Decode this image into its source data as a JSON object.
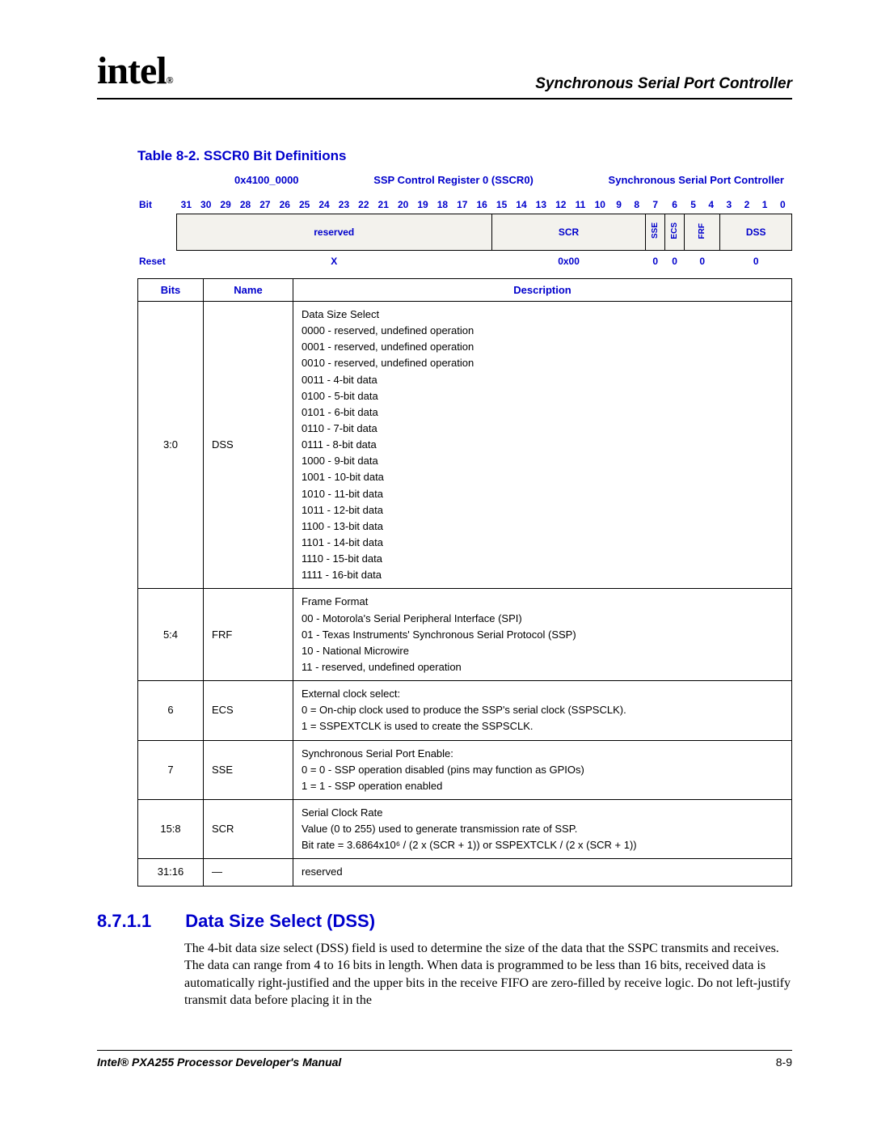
{
  "header": {
    "logo_text": "intel",
    "chapter_title": "Synchronous Serial Port Controller"
  },
  "table_caption": "Table 8-2. SSCR0 Bit Definitions",
  "reg_header": {
    "address": "0x4100_0000",
    "name": "SSP Control Register 0 (SSCR0)",
    "module": "Synchronous Serial Port Controller"
  },
  "bit_row": {
    "label": "Bit",
    "nums": [
      "31",
      "30",
      "29",
      "28",
      "27",
      "26",
      "25",
      "24",
      "23",
      "22",
      "21",
      "20",
      "19",
      "18",
      "17",
      "16",
      "15",
      "14",
      "13",
      "12",
      "11",
      "10",
      "9",
      "8",
      "7",
      "6",
      "5",
      "4",
      "3",
      "2",
      "1",
      "0"
    ]
  },
  "fields": {
    "reserved": "reserved",
    "scr": "SCR",
    "sse": "SSE",
    "ecs": "ECS",
    "frf": "FRF",
    "dss": "DSS"
  },
  "reset": {
    "label": "Reset",
    "reserved": "X",
    "scr": "0x00",
    "sse": "0",
    "ecs": "0",
    "frf": "0",
    "dss": "0"
  },
  "def_header": {
    "bits": "Bits",
    "name": "Name",
    "desc": "Description"
  },
  "defs": [
    {
      "bits": "3:0",
      "name": "DSS",
      "desc": "Data Size Select\n0000 - reserved, undefined operation\n0001 - reserved, undefined operation\n0010 - reserved, undefined operation\n0011 - 4-bit data\n0100 - 5-bit data\n0101 - 6-bit data\n0110 - 7-bit data\n0111 - 8-bit data\n1000 - 9-bit data\n1001 - 10-bit data\n1010 - 11-bit data\n1011 - 12-bit data\n1100 - 13-bit data\n1101 - 14-bit data\n1110 - 15-bit data\n1111 - 16-bit data"
    },
    {
      "bits": "5:4",
      "name": "FRF",
      "desc": "Frame Format\n00 - Motorola's Serial Peripheral Interface (SPI)\n01 - Texas Instruments' Synchronous Serial Protocol (SSP)\n10 - National Microwire\n11 - reserved, undefined operation"
    },
    {
      "bits": "6",
      "name": "ECS",
      "desc": "External clock select:\n0 =   On-chip clock used to produce the SSP's serial clock (SSPSCLK).\n1 =   SSPEXTCLK is used to create the SSPSCLK."
    },
    {
      "bits": "7",
      "name": "SSE",
      "desc": "Synchronous Serial Port Enable:\n0 =   0 - SSP operation disabled (pins may function as GPIOs)\n1 =   1 - SSP operation enabled"
    },
    {
      "bits": "15:8",
      "name": "SCR",
      "desc": "Serial Clock Rate\nValue (0 to 255) used to generate transmission rate of SSP.\nBit rate = 3.6864x10⁶ / (2 x (SCR + 1)) or SSPEXTCLK / (2 x (SCR + 1))"
    },
    {
      "bits": "31:16",
      "name": "—",
      "desc": "reserved"
    }
  ],
  "section": {
    "num": "8.7.1.1",
    "title": "Data Size Select (DSS)",
    "body": "The 4-bit data size select (DSS) field is used to determine the size of the data that the SSPC transmits and receives. The data can range from 4 to 16 bits in length. When data is programmed to be less than 16 bits, received data is automatically right-justified and the upper bits in the receive FIFO are zero-filled by receive logic. Do not left-justify transmit data before placing it in the"
  },
  "footer": {
    "left": "Intel® PXA255 Processor Developer's Manual",
    "right": "8-9"
  }
}
